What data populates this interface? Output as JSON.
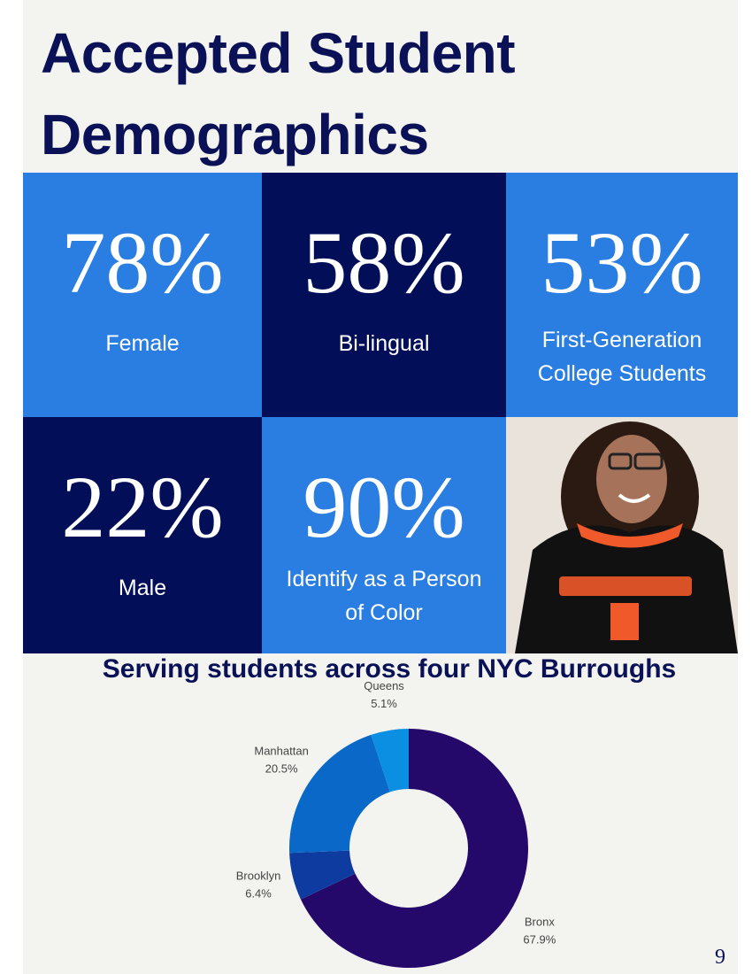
{
  "header": {
    "title": "Accepted Student Demographics"
  },
  "stats": [
    {
      "value": "78%",
      "label": "Female"
    },
    {
      "value": "58%",
      "label": "Bi-lingual"
    },
    {
      "value": "53%",
      "label": "First-Generation College Students"
    },
    {
      "value": "22%",
      "label": "Male"
    },
    {
      "value": "90%",
      "label": "Identify as a Person of Color"
    }
  ],
  "chart_data": {
    "type": "donut",
    "title": "Serving students across four NYC Burroughs",
    "categories": [
      "Bronx",
      "Brooklyn",
      "Manhattan",
      "Queens"
    ],
    "values": [
      67.9,
      6.4,
      20.5,
      5.1
    ],
    "value_labels": [
      "67.9%",
      "6.4%",
      "20.5%",
      "5.1%"
    ],
    "colors": [
      "#24096a",
      "#0d3b9f",
      "#0a68c9",
      "#0a8fe2"
    ]
  },
  "page_number": "9"
}
